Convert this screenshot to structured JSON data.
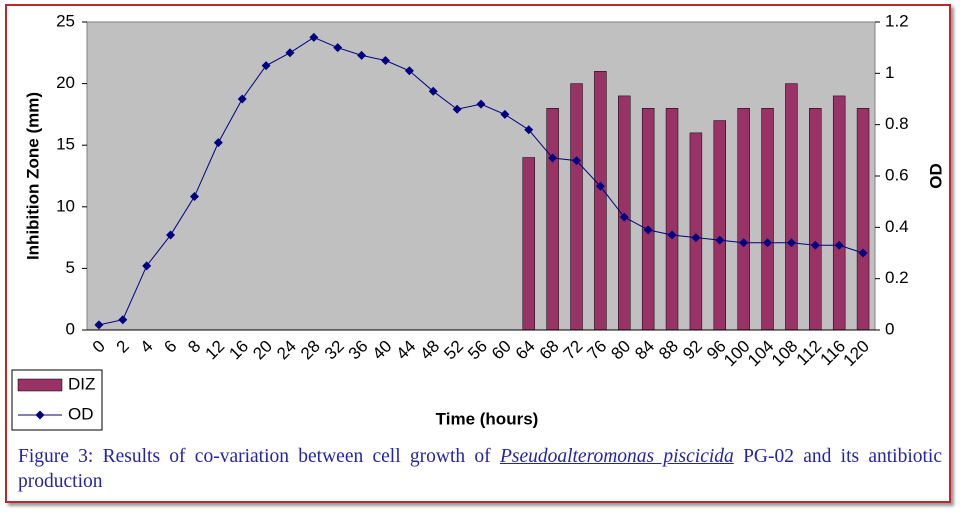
{
  "chart_data": {
    "type": "bar-line",
    "xlabel": "Time (hours)",
    "ylabel": "Inhibition Zone (mm)",
    "y2label": "OD",
    "categories": [
      "0",
      "2",
      "4",
      "6",
      "8",
      "12",
      "16",
      "20",
      "24",
      "28",
      "32",
      "36",
      "40",
      "44",
      "48",
      "52",
      "56",
      "60",
      "64",
      "68",
      "72",
      "76",
      "80",
      "84",
      "88",
      "92",
      "96",
      "100",
      "104",
      "108",
      "112",
      "116",
      "120"
    ],
    "series": [
      {
        "name": "DIZ",
        "type": "bar",
        "color": "#993366",
        "values": [
          null,
          null,
          null,
          null,
          null,
          null,
          null,
          null,
          null,
          null,
          null,
          null,
          null,
          null,
          null,
          null,
          null,
          null,
          14,
          18,
          20,
          21,
          19,
          18,
          18,
          16,
          17,
          18,
          18,
          20,
          18,
          19,
          18
        ]
      },
      {
        "name": "OD",
        "type": "line",
        "axis": "y2",
        "color": "#000080",
        "values": [
          0.02,
          0.04,
          0.25,
          0.37,
          0.52,
          0.73,
          0.9,
          1.03,
          1.08,
          1.14,
          1.1,
          1.07,
          1.05,
          1.01,
          0.93,
          0.86,
          0.88,
          0.84,
          0.78,
          0.67,
          0.66,
          0.56,
          0.44,
          0.39,
          0.37,
          0.36,
          0.35,
          0.34,
          0.34,
          0.34,
          0.33,
          0.33,
          0.3
        ]
      }
    ],
    "ylim": [
      0,
      25
    ],
    "yticks": [
      0,
      5,
      10,
      15,
      20,
      25
    ],
    "y2lim": [
      0,
      1.2
    ],
    "y2ticks": [
      0,
      0.2,
      0.4,
      0.6,
      0.8,
      1,
      1.2
    ],
    "plot_background": "#c0c0c0",
    "legend": "bottom-left"
  },
  "figure_caption": {
    "before": "Figure 3: Results of co-variation between cell growth of",
    "species": "Pseudoalteromonas piscicida",
    "after": "PG-02 and its antibiotic production"
  }
}
